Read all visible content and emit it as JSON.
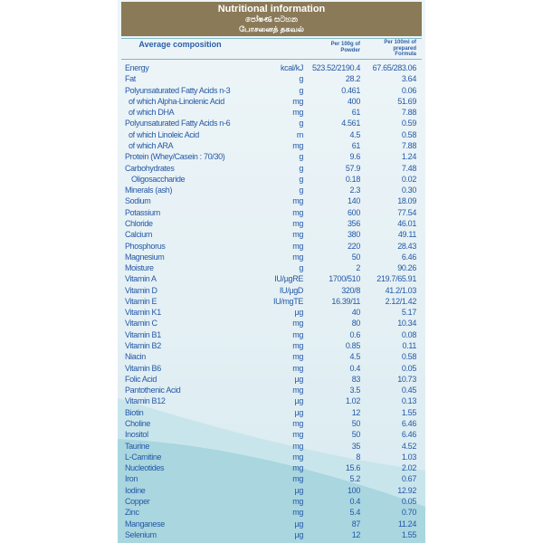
{
  "header": {
    "title": "Nutritional information",
    "title_sinhala": "පෝෂණ සටහන",
    "title_tamil": "போசனைத் தகவல்"
  },
  "columns": {
    "composition": "Average composition",
    "per_powder": "Per 100g of Powder",
    "per_formula": "Per 100ml of prepared Formula"
  },
  "colors": {
    "header_bg": "#8a7a58",
    "text": "#2458a6",
    "wave": "#a9d6df"
  },
  "rows": [
    {
      "name": "Energy",
      "unit": "kcal/kJ",
      "per100g": "523.52/2190.4",
      "per100ml": "67.65/283.06"
    },
    {
      "name": "Fat",
      "unit": "g",
      "per100g": "28.2",
      "per100ml": "3.64"
    },
    {
      "name": "Polyunsaturated Fatty Acids n-3",
      "unit": "g",
      "per100g": "0.461",
      "per100ml": "0.06"
    },
    {
      "name": "of which Alpha-Linolenic Acid",
      "unit": "mg",
      "per100g": "400",
      "per100ml": "51.69",
      "indent": 1
    },
    {
      "name": "of which DHA",
      "unit": "mg",
      "per100g": "61",
      "per100ml": "7.88",
      "indent": 1
    },
    {
      "name": "Polyunsaturated Fatty Acids n-6",
      "unit": "g",
      "per100g": "4.561",
      "per100ml": "0.59"
    },
    {
      "name": "of which Linoleic Acid",
      "unit": "m",
      "per100g": "4.5",
      "per100ml": "0.58",
      "indent": 1
    },
    {
      "name": "of which ARA",
      "unit": "mg",
      "per100g": "61",
      "per100ml": "7.88",
      "indent": 1
    },
    {
      "name": "Protein (Whey/Casein : 70/30)",
      "unit": "g",
      "per100g": "9.6",
      "per100ml": "1.24"
    },
    {
      "name": "Carbohydrates",
      "unit": "g",
      "per100g": "57.9",
      "per100ml": "7.48"
    },
    {
      "name": "Oligosaccharide",
      "unit": "g",
      "per100g": "0.18",
      "per100ml": "0.02",
      "indent": 2
    },
    {
      "name": "Minerals (ash)",
      "unit": "g",
      "per100g": "2.3",
      "per100ml": "0.30"
    },
    {
      "name": "Sodium",
      "unit": "mg",
      "per100g": "140",
      "per100ml": "18.09"
    },
    {
      "name": "Potassium",
      "unit": "mg",
      "per100g": "600",
      "per100ml": "77.54"
    },
    {
      "name": "Chloride",
      "unit": "mg",
      "per100g": "356",
      "per100ml": "46.01"
    },
    {
      "name": "Calcium",
      "unit": "mg",
      "per100g": "380",
      "per100ml": "49.11"
    },
    {
      "name": "Phosphorus",
      "unit": "mg",
      "per100g": "220",
      "per100ml": "28.43"
    },
    {
      "name": "Magnesium",
      "unit": "mg",
      "per100g": "50",
      "per100ml": "6.46"
    },
    {
      "name": "Moisture",
      "unit": "g",
      "per100g": "2",
      "per100ml": "90.26"
    },
    {
      "name": "Vitamin A",
      "unit": "IU/µgRE",
      "per100g": "1700/510",
      "per100ml": "219.7/65.91"
    },
    {
      "name": "Vitamin D",
      "unit": "IU/µgD",
      "per100g": "320/8",
      "per100ml": "41.2/1.03"
    },
    {
      "name": "Vitamin E",
      "unit": "IU/mgTE",
      "per100g": "16.39/11",
      "per100ml": "2.12/1.42"
    },
    {
      "name": "Vitamin K1",
      "unit": "µg",
      "per100g": "40",
      "per100ml": "5.17"
    },
    {
      "name": "Vitamin C",
      "unit": "mg",
      "per100g": "80",
      "per100ml": "10.34"
    },
    {
      "name": "Vitamin B1",
      "unit": "mg",
      "per100g": "0.6",
      "per100ml": "0.08"
    },
    {
      "name": "Vitamin B2",
      "unit": "mg",
      "per100g": "0.85",
      "per100ml": "0.11"
    },
    {
      "name": "Niacin",
      "unit": "mg",
      "per100g": "4.5",
      "per100ml": "0.58"
    },
    {
      "name": "Vitamin B6",
      "unit": "mg",
      "per100g": "0.4",
      "per100ml": "0.05"
    },
    {
      "name": "Folic Acid",
      "unit": "µg",
      "per100g": "83",
      "per100ml": "10.73"
    },
    {
      "name": "Pantothenic Acid",
      "unit": "mg",
      "per100g": "3.5",
      "per100ml": "0.45"
    },
    {
      "name": "Vitamin B12",
      "unit": "µg",
      "per100g": "1.02",
      "per100ml": "0.13"
    },
    {
      "name": "Biotin",
      "unit": "µg",
      "per100g": "12",
      "per100ml": "1.55"
    },
    {
      "name": "Choline",
      "unit": "mg",
      "per100g": "50",
      "per100ml": "6.46"
    },
    {
      "name": "Inositol",
      "unit": "mg",
      "per100g": "50",
      "per100ml": "6.46"
    },
    {
      "name": "Taurine",
      "unit": "mg",
      "per100g": "35",
      "per100ml": "4.52"
    },
    {
      "name": "L-Carnitine",
      "unit": "mg",
      "per100g": "8",
      "per100ml": "1.03"
    },
    {
      "name": "Nucleotides",
      "unit": "mg",
      "per100g": "15.6",
      "per100ml": "2.02"
    },
    {
      "name": "Iron",
      "unit": "mg",
      "per100g": "5.2",
      "per100ml": "0.67"
    },
    {
      "name": "Iodine",
      "unit": "µg",
      "per100g": "100",
      "per100ml": "12.92"
    },
    {
      "name": "Copper",
      "unit": "mg",
      "per100g": "0.4",
      "per100ml": "0.05"
    },
    {
      "name": "Zinc",
      "unit": "mg",
      "per100g": "5.4",
      "per100ml": "0.70"
    },
    {
      "name": "Manganese",
      "unit": "µg",
      "per100g": "87",
      "per100ml": "11.24"
    },
    {
      "name": "Selenium",
      "unit": "µg",
      "per100g": "12",
      "per100ml": "1.55"
    }
  ]
}
